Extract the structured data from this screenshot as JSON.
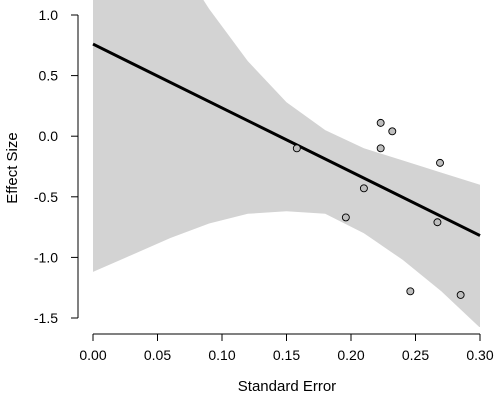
{
  "chart_data": {
    "type": "scatter",
    "title": "",
    "xlabel": "Standard Error",
    "ylabel": "Effect Size",
    "xlim": [
      0.0,
      0.3
    ],
    "ylim": [
      -1.5,
      1.0
    ],
    "xticks": [
      0.0,
      0.05,
      0.1,
      0.15,
      0.2,
      0.25,
      0.3
    ],
    "xtick_labels": [
      "0.00",
      "0.05",
      "0.10",
      "0.15",
      "0.20",
      "0.25",
      "0.30"
    ],
    "yticks": [
      1.0,
      0.5,
      0.0,
      -0.5,
      -1.0,
      -1.5
    ],
    "ytick_labels": [
      "1.0",
      "0.5",
      "0.0",
      "-0.5",
      "-1.0",
      "-1.5"
    ],
    "grid": false,
    "points": [
      {
        "x": 0.158,
        "y": -0.1
      },
      {
        "x": 0.196,
        "y": -0.67
      },
      {
        "x": 0.21,
        "y": -0.43
      },
      {
        "x": 0.223,
        "y": 0.11
      },
      {
        "x": 0.223,
        "y": -0.1
      },
      {
        "x": 0.232,
        "y": 0.04
      },
      {
        "x": 0.246,
        "y": -1.28
      },
      {
        "x": 0.267,
        "y": -0.71
      },
      {
        "x": 0.269,
        "y": -0.22
      },
      {
        "x": 0.285,
        "y": -1.31
      }
    ],
    "regression_line": {
      "x": [
        0.0,
        0.3
      ],
      "y": [
        0.76,
        -0.82
      ]
    },
    "confidence_band": {
      "x": [
        0.0,
        0.03,
        0.06,
        0.09,
        0.12,
        0.15,
        0.18,
        0.21,
        0.24,
        0.27,
        0.3
      ],
      "upper": [
        2.7,
        2.1,
        1.55,
        1.05,
        0.62,
        0.28,
        0.05,
        -0.1,
        -0.2,
        -0.3,
        -0.4
      ],
      "lower": [
        -1.12,
        -0.98,
        -0.84,
        -0.72,
        -0.64,
        -0.62,
        -0.64,
        -0.8,
        -1.02,
        -1.28,
        -1.58
      ]
    },
    "colors": {
      "band": "#d3d3d3",
      "line": "#000000",
      "point_fill": "#bebebe",
      "point_stroke": "#000000",
      "axis": "#000000"
    }
  }
}
